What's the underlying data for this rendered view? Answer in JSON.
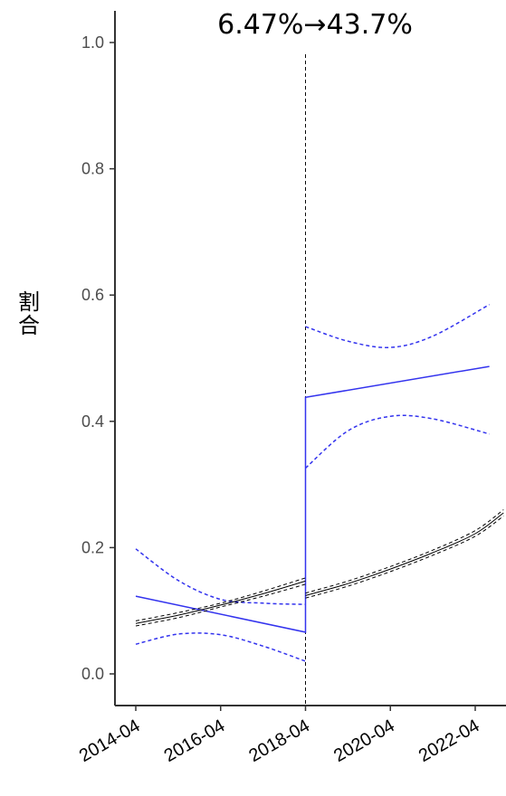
{
  "chart_data": {
    "type": "line",
    "title": "6.47%→43.7%",
    "ylabel": "割合",
    "xlabel": "",
    "ylim": [
      0,
      1.0
    ],
    "yticks": [
      0.0,
      0.2,
      0.4,
      0.6,
      0.8,
      1.0
    ],
    "ytick_labels": [
      "0.0",
      "0.2",
      "0.4",
      "0.6",
      "0.8",
      "1.0"
    ],
    "xlim": [
      "2013-04",
      "2022-12"
    ],
    "xticks": [
      "2014-04",
      "2016-04",
      "2018-04",
      "2020-04",
      "2022-04"
    ],
    "grid": false,
    "legend": "none",
    "intervention": "2018-04",
    "series": [
      {
        "style": "blue-solid",
        "color": "#3333ee",
        "points": [
          [
            "2014-04",
            0.123
          ],
          [
            "2018-04",
            0.066
          ],
          [
            "2018-04",
            0.438
          ],
          [
            "2022-08",
            0.487
          ]
        ]
      },
      {
        "style": "blue-dashed",
        "color": "#3333ee",
        "points": [
          [
            "2014-04",
            0.198
          ],
          [
            "2015-04",
            0.148
          ],
          [
            "2016-04",
            0.118
          ],
          [
            "2017-04",
            0.112
          ],
          [
            "2018-04",
            0.11
          ]
        ]
      },
      {
        "style": "blue-dashed",
        "color": "#3333ee",
        "points": [
          [
            "2014-04",
            0.047
          ],
          [
            "2015-04",
            0.063
          ],
          [
            "2016-04",
            0.062
          ],
          [
            "2017-04",
            0.044
          ],
          [
            "2018-04",
            0.02
          ]
        ]
      },
      {
        "style": "blue-dashed",
        "color": "#3333ee",
        "points": [
          [
            "2018-04",
            0.55
          ],
          [
            "2019-04",
            0.527
          ],
          [
            "2020-04",
            0.517
          ],
          [
            "2021-04",
            0.535
          ],
          [
            "2022-08",
            0.585
          ]
        ]
      },
      {
        "style": "blue-dashed",
        "color": "#3333ee",
        "points": [
          [
            "2018-04",
            0.326
          ],
          [
            "2019-04",
            0.385
          ],
          [
            "2020-04",
            0.408
          ],
          [
            "2021-04",
            0.404
          ],
          [
            "2022-08",
            0.38
          ]
        ]
      },
      {
        "style": "black-solid",
        "color": "#000000",
        "points": [
          [
            "2014-04",
            0.08
          ],
          [
            "2015-04",
            0.093
          ],
          [
            "2016-04",
            0.109
          ],
          [
            "2017-04",
            0.127
          ],
          [
            "2018-04",
            0.147
          ]
        ]
      },
      {
        "style": "black-dashed",
        "color": "#000000",
        "points": [
          [
            "2014-04",
            0.076
          ],
          [
            "2015-04",
            0.089
          ],
          [
            "2016-04",
            0.106
          ],
          [
            "2017-04",
            0.123
          ],
          [
            "2018-04",
            0.142
          ]
        ]
      },
      {
        "style": "black-dashed",
        "color": "#000000",
        "points": [
          [
            "2014-04",
            0.084
          ],
          [
            "2015-04",
            0.097
          ],
          [
            "2016-04",
            0.112
          ],
          [
            "2017-04",
            0.131
          ],
          [
            "2018-04",
            0.152
          ]
        ]
      },
      {
        "style": "black-solid",
        "color": "#000000",
        "points": [
          [
            "2018-04",
            0.124
          ],
          [
            "2019-04",
            0.143
          ],
          [
            "2020-04",
            0.166
          ],
          [
            "2021-04",
            0.192
          ],
          [
            "2022-04",
            0.222
          ],
          [
            "2022-12",
            0.255
          ]
        ]
      },
      {
        "style": "black-dashed",
        "color": "#000000",
        "points": [
          [
            "2018-04",
            0.12
          ],
          [
            "2019-04",
            0.139
          ],
          [
            "2020-04",
            0.162
          ],
          [
            "2021-04",
            0.188
          ],
          [
            "2022-04",
            0.218
          ],
          [
            "2022-12",
            0.25
          ]
        ]
      },
      {
        "style": "black-dashed",
        "color": "#000000",
        "points": [
          [
            "2018-04",
            0.128
          ],
          [
            "2019-04",
            0.147
          ],
          [
            "2020-04",
            0.17
          ],
          [
            "2021-04",
            0.196
          ],
          [
            "2022-04",
            0.227
          ],
          [
            "2022-12",
            0.26
          ]
        ]
      }
    ]
  }
}
